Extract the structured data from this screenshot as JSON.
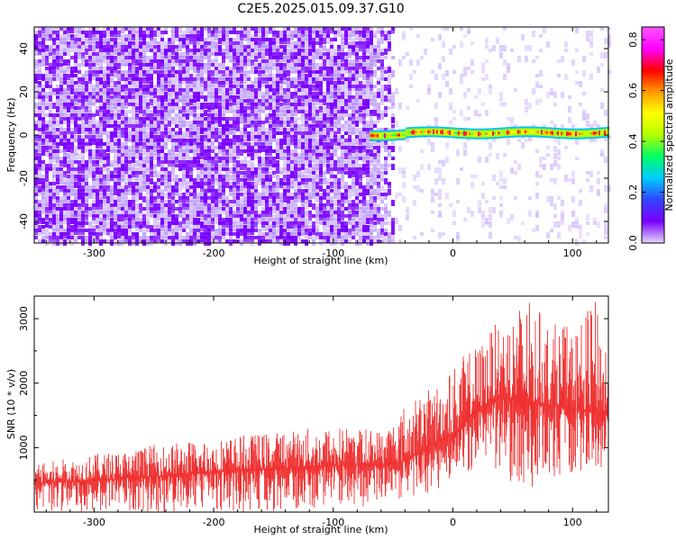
{
  "figure_title": "C2E5.2025.015.09.37.G10",
  "chart_data": [
    {
      "type": "heatmap",
      "name": "spectrogram",
      "xlabel": "Height of straight line (km)",
      "ylabel": "Frequency (Hz)",
      "xlim": [
        -350,
        130
      ],
      "ylim": [
        -50,
        50
      ],
      "x_ticks": [
        -300,
        -200,
        -100,
        0,
        100
      ],
      "x_tick_labels": [
        "-300",
        "-200",
        "-100",
        "0",
        "100"
      ],
      "y_ticks": [
        -40,
        -20,
        0,
        20,
        40
      ],
      "y_tick_labels": [
        "-40",
        "-20",
        "0",
        "20",
        "40"
      ],
      "noise_region_end_km": -50,
      "signal_start_km": -70,
      "signal_frequency_hz": 1,
      "signal_max_amplitude": 0.85,
      "colorbar": {
        "label": "Normalized spectral amplitude",
        "range": [
          0.0,
          0.85
        ],
        "ticks": [
          0.0,
          0.2,
          0.4,
          0.6,
          0.8
        ],
        "tick_labels": [
          "0.0",
          "0.2",
          "0.4",
          "0.6",
          "0.8"
        ],
        "colors": [
          "#e6d8fb",
          "#7a00ff",
          "#3344ff",
          "#00ccff",
          "#00ff66",
          "#b2ff00",
          "#ffff00",
          "#ff9900",
          "#ff0000",
          "#ff00ff",
          "#ff55ff"
        ]
      }
    },
    {
      "type": "line",
      "name": "snr",
      "xlabel": "Height of straight line (km)",
      "ylabel": "SNR (10 * v/v)",
      "xlim": [
        -350,
        130
      ],
      "ylim": [
        0,
        3350
      ],
      "x_ticks": [
        -300,
        -200,
        -100,
        0,
        100
      ],
      "x_tick_labels": [
        "-300",
        "-200",
        "-100",
        "0",
        "100"
      ],
      "y_ticks": [
        1000,
        2000,
        3000
      ],
      "y_tick_labels": [
        "1000",
        "2000",
        "3000"
      ],
      "line_color": "#f03030",
      "envelope_keypoints": {
        "x": [
          -350,
          -300,
          -250,
          -200,
          -150,
          -100,
          -60,
          -40,
          -20,
          0,
          20,
          40,
          60,
          80,
          100,
          120,
          130
        ],
        "mean": [
          450,
          500,
          560,
          620,
          680,
          720,
          730,
          800,
          1050,
          1200,
          1600,
          1800,
          1700,
          1650,
          1600,
          1550,
          1500
        ],
        "upper": [
          750,
          900,
          1050,
          1150,
          1250,
          1350,
          1300,
          1700,
          1900,
          2300,
          2600,
          3000,
          3350,
          3000,
          2850,
          3300,
          2700
        ],
        "lower": [
          0,
          0,
          0,
          0,
          0,
          50,
          100,
          200,
          300,
          400,
          700,
          600,
          300,
          500,
          600,
          700,
          600
        ]
      }
    }
  ]
}
